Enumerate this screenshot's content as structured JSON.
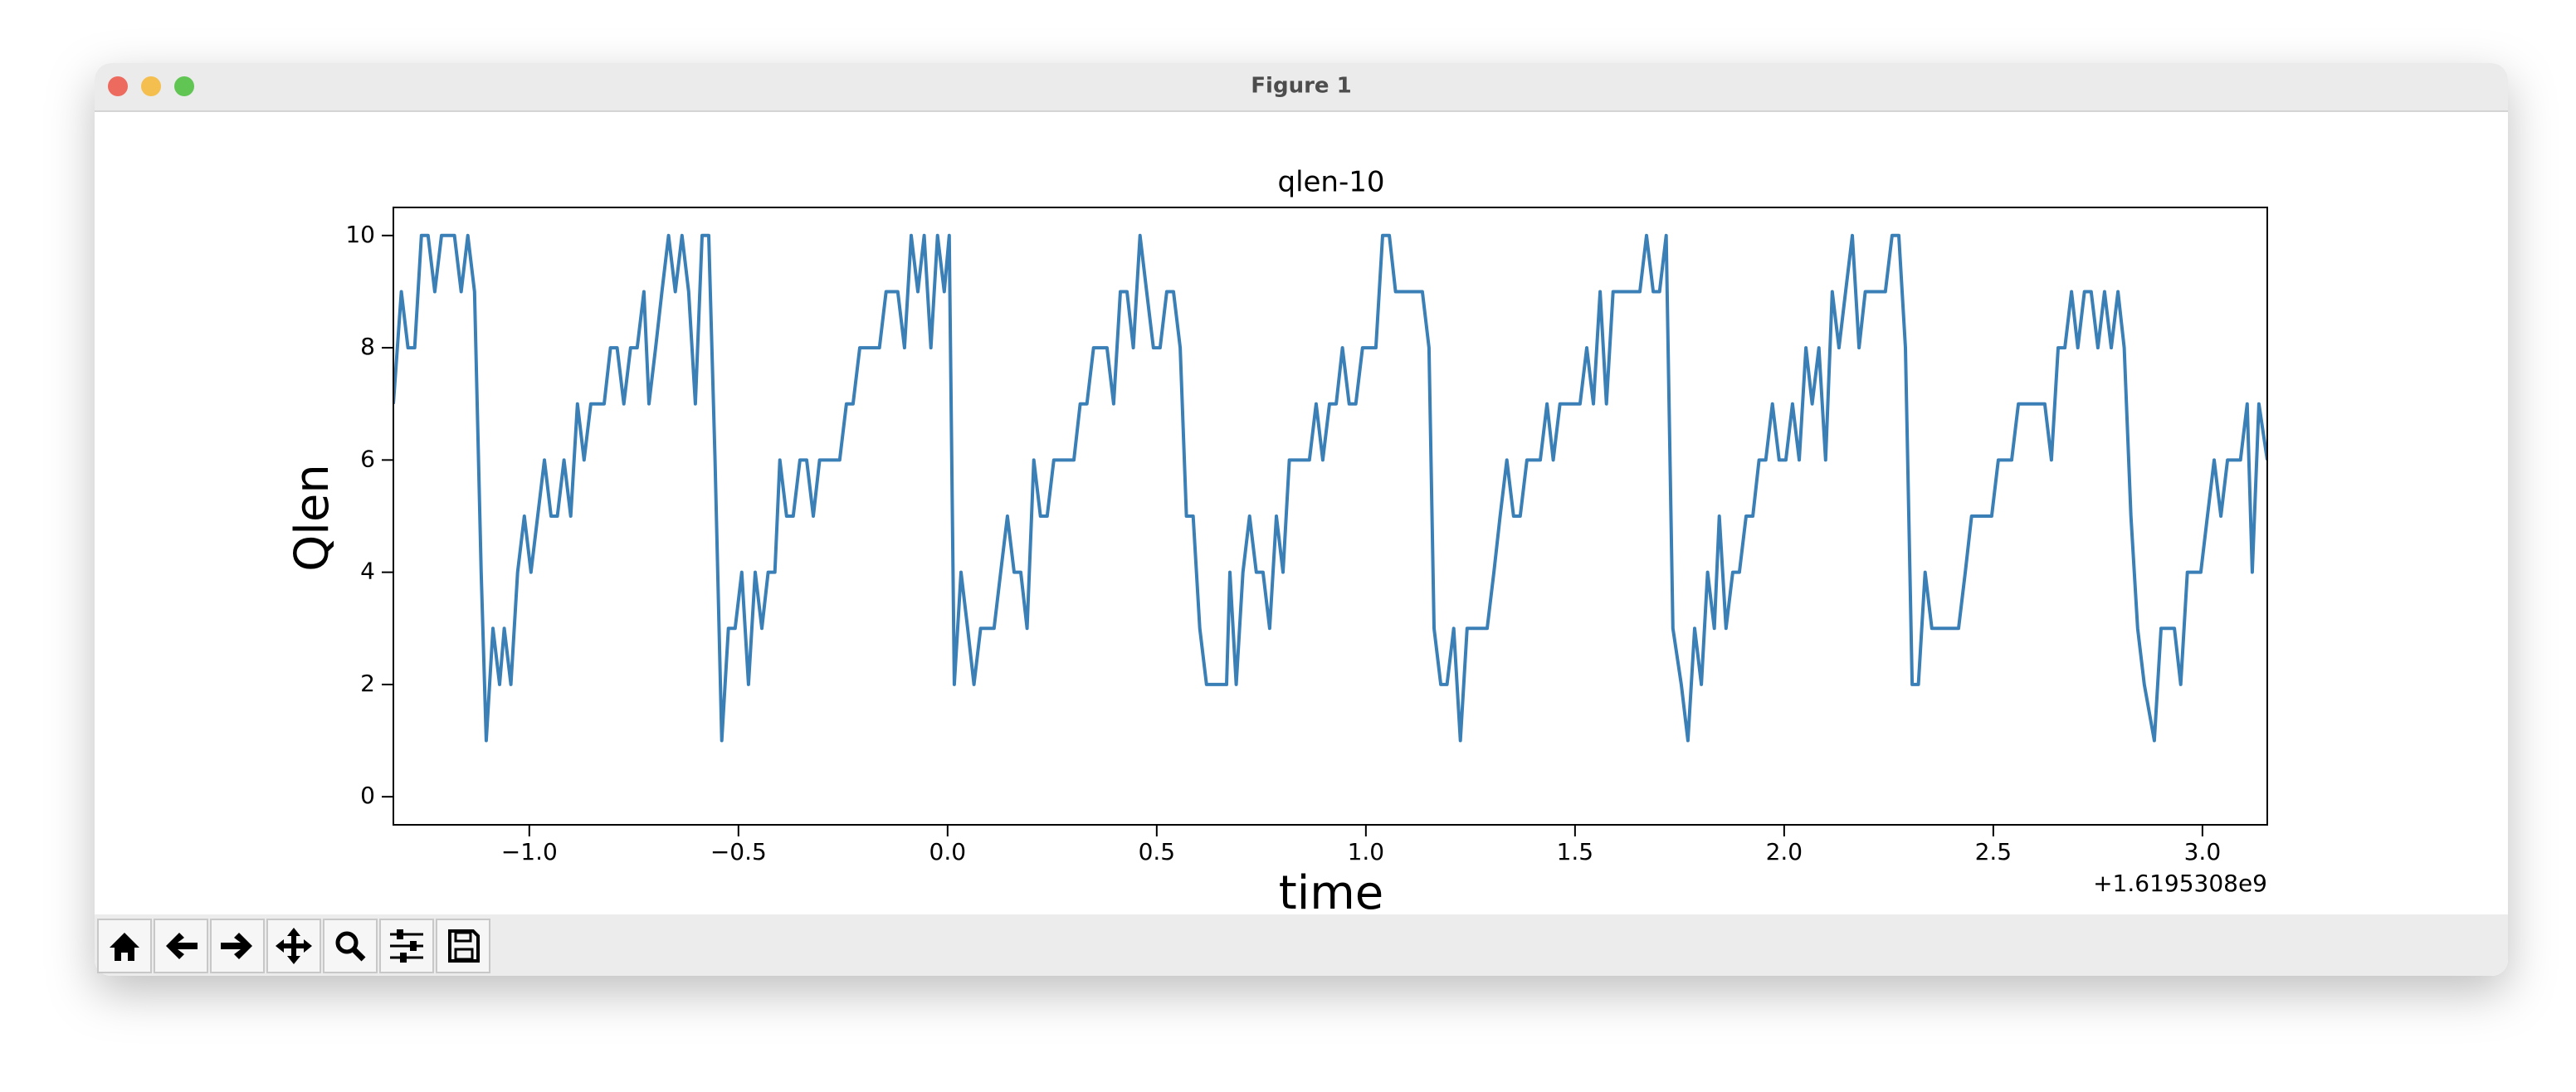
{
  "window": {
    "title": "Figure 1"
  },
  "chart_data": {
    "type": "line",
    "title": "qlen-10",
    "x_label": "time",
    "y_label": "Qlen",
    "x_offset_label": "+1.6195308e9",
    "color": "#3a7fb6",
    "xlim": [
      -1.325,
      3.155
    ],
    "ylim": [
      -0.5,
      10.5
    ],
    "xticks": [
      {
        "value": -1,
        "label": "−1.0"
      },
      {
        "value": -0.5,
        "label": "−0.5"
      },
      {
        "value": 0,
        "label": "0.0"
      },
      0.5,
      {
        "value": 1,
        "label": "1.0"
      },
      1.5,
      {
        "value": 2,
        "label": "2.0"
      },
      2.5,
      {
        "value": 3,
        "label": "3.0"
      }
    ],
    "yticks": [
      0,
      2,
      4,
      6,
      8,
      10
    ],
    "x": [
      -1.325,
      -1.306,
      -1.29,
      -1.274,
      -1.258,
      -1.242,
      -1.226,
      -1.21,
      -1.194,
      -1.179,
      -1.163,
      -1.147,
      -1.131,
      -1.115,
      -1.103,
      -1.087,
      -1.071,
      -1.06,
      -1.044,
      -1.028,
      -1.012,
      -0.996,
      -0.98,
      -0.964,
      -0.948,
      -0.933,
      -0.917,
      -0.901,
      -0.885,
      -0.869,
      -0.853,
      -0.837,
      -0.821,
      -0.806,
      -0.79,
      -0.774,
      -0.758,
      -0.742,
      -0.726,
      -0.714,
      -0.698,
      -0.683,
      -0.667,
      -0.651,
      -0.635,
      -0.619,
      -0.603,
      -0.587,
      -0.571,
      -0.556,
      -0.54,
      -0.524,
      -0.508,
      -0.492,
      -0.476,
      -0.46,
      -0.444,
      -0.429,
      -0.413,
      -0.401,
      -0.385,
      -0.369,
      -0.353,
      -0.337,
      -0.321,
      -0.306,
      -0.29,
      -0.274,
      -0.258,
      -0.242,
      -0.226,
      -0.21,
      -0.194,
      -0.179,
      -0.163,
      -0.147,
      -0.131,
      -0.119,
      -0.103,
      -0.087,
      -0.071,
      -0.056,
      -0.04,
      -0.024,
      -0.008,
      0.004,
      0.016,
      0.032,
      0.048,
      0.063,
      0.079,
      0.095,
      0.111,
      0.127,
      0.143,
      0.159,
      0.175,
      0.19,
      0.206,
      0.222,
      0.238,
      0.254,
      0.27,
      0.286,
      0.302,
      0.317,
      0.333,
      0.349,
      0.365,
      0.381,
      0.397,
      0.413,
      0.429,
      0.444,
      0.46,
      0.476,
      0.492,
      0.508,
      0.524,
      0.54,
      0.556,
      0.571,
      0.587,
      0.603,
      0.619,
      0.635,
      0.651,
      0.667,
      0.675,
      0.69,
      0.706,
      0.722,
      0.738,
      0.754,
      0.77,
      0.786,
      0.802,
      0.817,
      0.833,
      0.849,
      0.865,
      0.881,
      0.897,
      0.913,
      0.929,
      0.944,
      0.96,
      0.976,
      0.992,
      1.008,
      1.024,
      1.04,
      1.056,
      1.071,
      1.087,
      1.103,
      1.119,
      1.135,
      1.151,
      1.163,
      1.179,
      1.194,
      1.21,
      1.226,
      1.242,
      1.258,
      1.274,
      1.29,
      1.306,
      1.321,
      1.337,
      1.353,
      1.369,
      1.385,
      1.401,
      1.417,
      1.433,
      1.448,
      1.464,
      1.48,
      1.496,
      1.512,
      1.528,
      1.544,
      1.56,
      1.575,
      1.591,
      1.607,
      1.623,
      1.639,
      1.655,
      1.671,
      1.687,
      1.702,
      1.718,
      1.734,
      1.754,
      1.77,
      1.786,
      1.802,
      1.817,
      1.833,
      1.845,
      1.861,
      1.877,
      1.893,
      1.909,
      1.925,
      1.94,
      1.956,
      1.972,
      1.988,
      2.004,
      2.02,
      2.036,
      2.052,
      2.067,
      2.083,
      2.099,
      2.115,
      2.131,
      2.147,
      2.163,
      2.179,
      2.194,
      2.21,
      2.226,
      2.242,
      2.258,
      2.274,
      2.29,
      2.306,
      2.321,
      2.337,
      2.353,
      2.369,
      2.385,
      2.401,
      2.417,
      2.433,
      2.448,
      2.464,
      2.48,
      2.496,
      2.512,
      2.528,
      2.544,
      2.56,
      2.575,
      2.591,
      2.607,
      2.623,
      2.639,
      2.655,
      2.671,
      2.687,
      2.702,
      2.718,
      2.734,
      2.75,
      2.766,
      2.782,
      2.798,
      2.813,
      2.829,
      2.845,
      2.861,
      2.885,
      2.901,
      2.917,
      2.933,
      2.948,
      2.964,
      2.98,
      2.996,
      3.012,
      3.028,
      3.044,
      3.06,
      3.075,
      3.091,
      3.107,
      3.119,
      3.135,
      3.155
    ],
    "values": [
      7,
      9,
      8,
      8,
      10,
      10,
      9,
      10,
      10,
      10,
      9,
      10,
      9,
      4,
      1,
      3,
      2,
      3,
      2,
      4,
      5,
      4,
      5,
      6,
      5,
      5,
      6,
      5,
      7,
      6,
      7,
      7,
      7,
      8,
      8,
      7,
      8,
      8,
      9,
      7,
      8,
      9,
      10,
      9,
      10,
      9,
      7,
      10,
      10,
      6,
      1,
      3,
      3,
      4,
      2,
      4,
      3,
      4,
      4,
      6,
      5,
      5,
      6,
      6,
      5,
      6,
      6,
      6,
      6,
      7,
      7,
      8,
      8,
      8,
      8,
      9,
      9,
      9,
      8,
      10,
      9,
      10,
      8,
      10,
      9,
      10,
      2,
      4,
      3,
      2,
      3,
      3,
      3,
      4,
      5,
      4,
      4,
      3,
      6,
      5,
      5,
      6,
      6,
      6,
      6,
      7,
      7,
      8,
      8,
      8,
      7,
      9,
      9,
      8,
      10,
      9,
      8,
      8,
      9,
      9,
      8,
      5,
      5,
      3,
      2,
      2,
      2,
      2,
      4,
      2,
      4,
      5,
      4,
      4,
      3,
      5,
      4,
      6,
      6,
      6,
      6,
      7,
      6,
      7,
      7,
      8,
      7,
      7,
      8,
      8,
      8,
      10,
      10,
      9,
      9,
      9,
      9,
      9,
      8,
      3,
      2,
      2,
      3,
      1,
      3,
      3,
      3,
      3,
      4,
      5,
      6,
      5,
      5,
      6,
      6,
      6,
      7,
      6,
      7,
      7,
      7,
      7,
      8,
      7,
      9,
      7,
      9,
      9,
      9,
      9,
      9,
      10,
      9,
      9,
      10,
      3,
      2,
      1,
      3,
      2,
      4,
      3,
      5,
      3,
      4,
      4,
      5,
      5,
      6,
      6,
      7,
      6,
      6,
      7,
      6,
      8,
      7,
      8,
      6,
      9,
      8,
      9,
      10,
      8,
      9,
      9,
      9,
      9,
      10,
      10,
      8,
      2,
      2,
      4,
      3,
      3,
      3,
      3,
      3,
      4,
      5,
      5,
      5,
      5,
      6,
      6,
      6,
      7,
      7,
      7,
      7,
      7,
      6,
      8,
      8,
      9,
      8,
      9,
      9,
      8,
      9,
      8,
      9,
      8,
      5,
      3,
      2,
      1,
      3,
      3,
      3,
      2,
      4,
      4,
      4,
      5,
      6,
      5,
      6,
      6,
      6,
      7,
      4,
      7,
      6
    ]
  }
}
